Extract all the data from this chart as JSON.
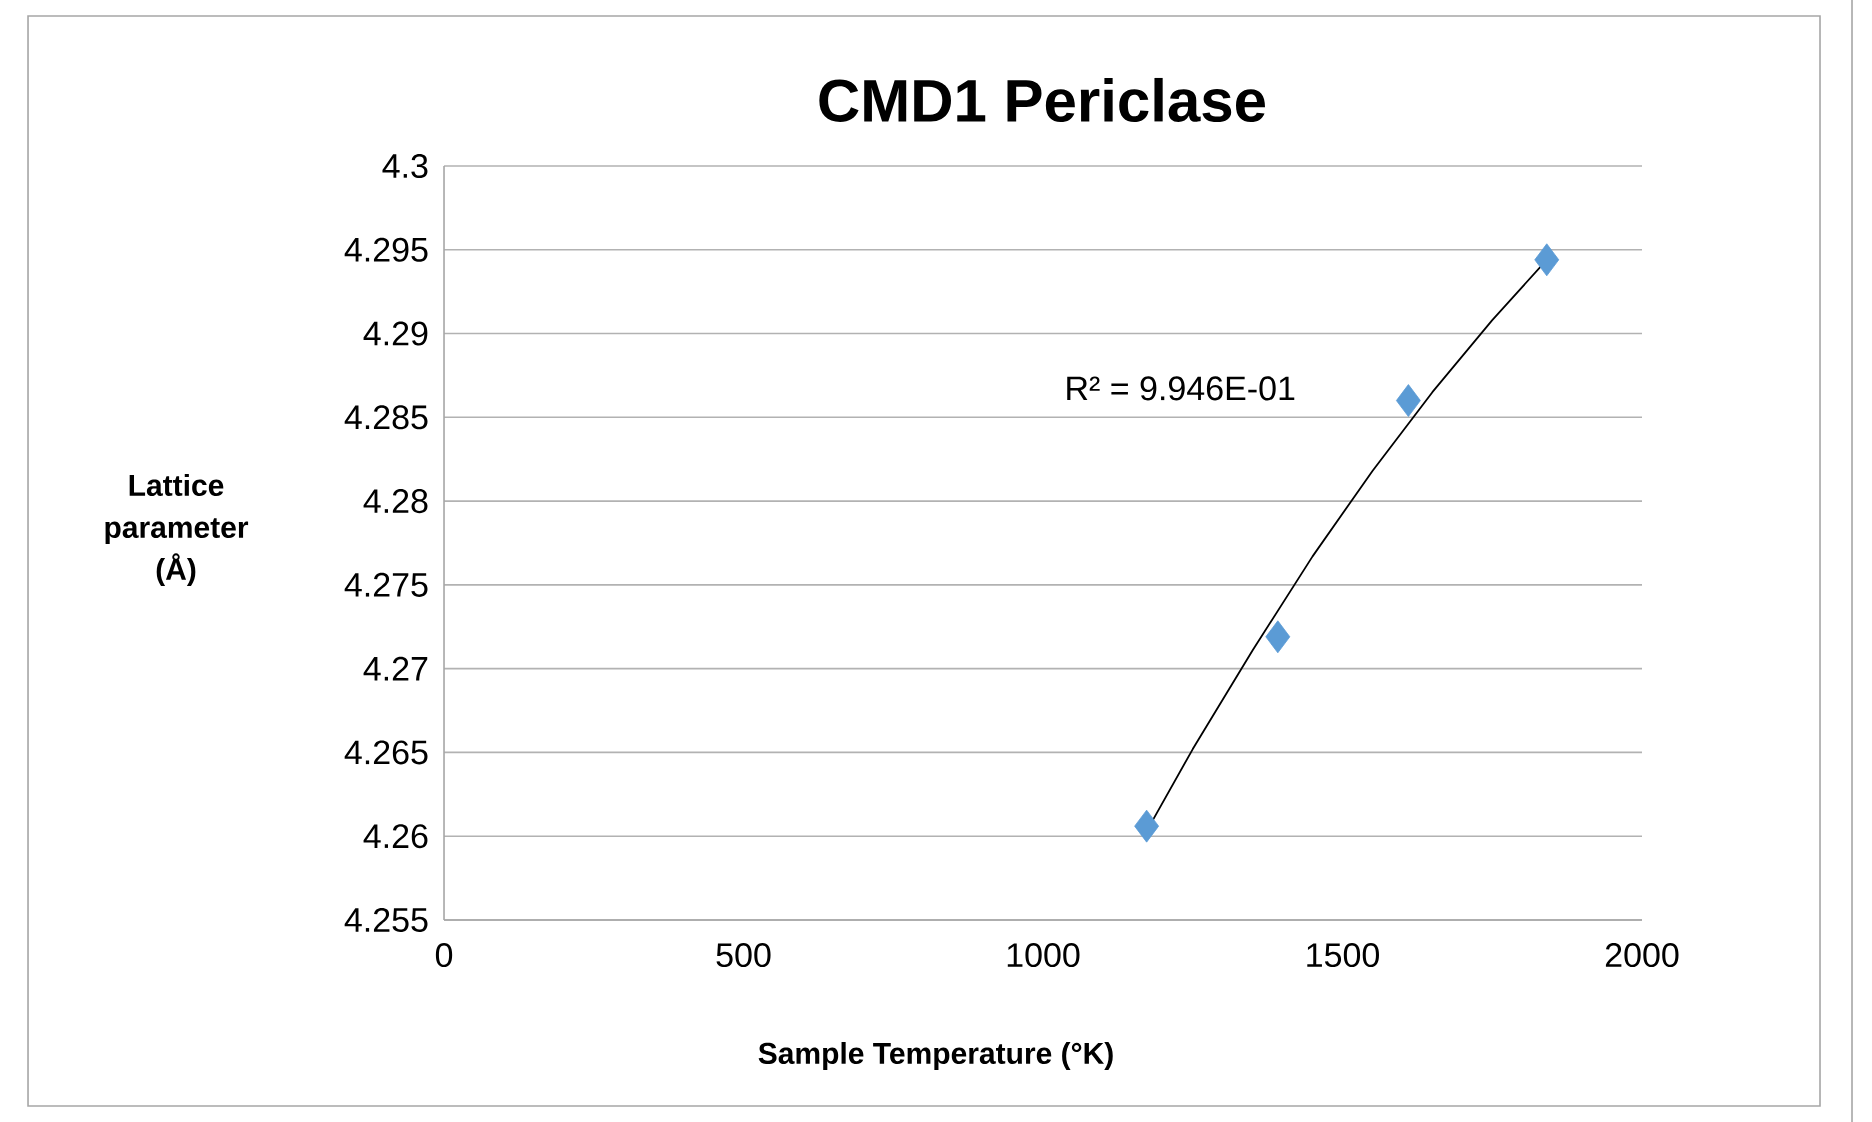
{
  "chart_data": {
    "type": "scatter",
    "title": "CMD1 Periclase",
    "xlabel": "Sample Temperature (°K)",
    "ylabel": "Lattice parameter (Å)",
    "series": [
      {
        "color": "#5b9bd5",
        "marker": "diamond",
        "x": [
          1173,
          1392,
          1610,
          1841
        ],
        "values": [
          4.2606,
          4.2719,
          4.286,
          4.2944
        ]
      },
      {
        "type": "line",
        "color": "#000000",
        "marker": "none",
        "line_style": "solid",
        "x": [
          1173,
          1250,
          1350,
          1450,
          1550,
          1650,
          1750,
          1841
        ],
        "values": [
          4.2603,
          4.2652,
          4.2711,
          4.2767,
          4.2818,
          4.2865,
          4.2908,
          4.2944
        ]
      }
    ],
    "annotations": [
      "R² = 9.946E-01"
    ],
    "xlim": [
      0,
      2000
    ],
    "xticks": [
      0,
      500,
      1000,
      1500,
      2000
    ],
    "ylim": [
      4.255,
      4.3
    ],
    "yticks": [
      4.255,
      4.26,
      4.265,
      4.27,
      4.275,
      4.28,
      4.285,
      4.29,
      4.295,
      4.3
    ],
    "grid": "y"
  }
}
